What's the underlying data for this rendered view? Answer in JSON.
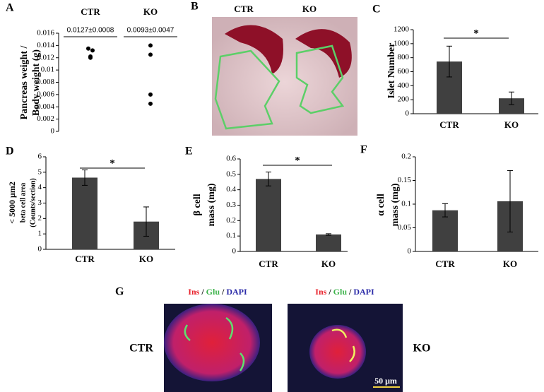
{
  "chart_data": [
    {
      "panel": "A",
      "type": "dot",
      "categories": [
        "CTR",
        "KO"
      ],
      "ylabel": [
        "Pancreas weight /",
        "Body weight (g)"
      ],
      "annotations": [
        "0.0127±0.0008",
        "0.0093±0.0047"
      ],
      "ylim": [
        0,
        0.016
      ],
      "yticks": [
        0,
        0.002,
        0.004,
        0.006,
        0.008,
        0.01,
        0.012,
        0.014,
        0.016
      ],
      "series": [
        {
          "color": "#000000",
          "values": [
            [
              0.0135,
              0.0132,
              0.0122,
              0.012
            ],
            [
              0.014,
              0.0125,
              0.006,
              0.0045
            ]
          ]
        }
      ]
    },
    {
      "panel": "C",
      "type": "bar",
      "categories": [
        "CTR",
        "KO"
      ],
      "ylabel": [
        "Islet Number"
      ],
      "significance": "*",
      "ylim": [
        0,
        1200
      ],
      "yticks": [
        0,
        200,
        400,
        600,
        800,
        1000,
        1200
      ],
      "series": [
        {
          "color": "#404040",
          "values": [
            745,
            220
          ],
          "errors": [
            220,
            90
          ]
        }
      ]
    },
    {
      "panel": "D",
      "type": "bar",
      "categories": [
        "CTR",
        "KO"
      ],
      "ylabel": [
        "< 5000 μm2",
        "beta cell area",
        "(Counts/section)"
      ],
      "significance": "*",
      "ylim": [
        0,
        6
      ],
      "yticks": [
        0,
        1,
        2,
        3,
        4,
        5,
        6
      ],
      "series": [
        {
          "color": "#404040",
          "values": [
            4.65,
            1.8
          ],
          "errors": [
            0.5,
            0.95
          ]
        }
      ]
    },
    {
      "panel": "E",
      "type": "bar",
      "categories": [
        "CTR",
        "KO"
      ],
      "ylabel": [
        "β cell",
        "mass (mg)"
      ],
      "significance": "*",
      "ylim": [
        0,
        0.6
      ],
      "yticks": [
        0,
        0.1,
        0.2,
        0.3,
        0.4,
        0.5,
        0.6
      ],
      "series": [
        {
          "color": "#404040",
          "values": [
            0.47,
            0.11
          ],
          "errors": [
            0.045,
            0.005
          ]
        }
      ]
    },
    {
      "panel": "F",
      "type": "bar",
      "categories": [
        "CTR",
        "KO"
      ],
      "ylabel": [
        "α cell",
        "mass (mg)"
      ],
      "ylim": [
        0,
        0.2
      ],
      "yticks": [
        0,
        0.05,
        0.1,
        0.15,
        0.2
      ],
      "series": [
        {
          "color": "#404040",
          "values": [
            0.087,
            0.106
          ],
          "errors": [
            0.014,
            0.065
          ]
        }
      ]
    }
  ],
  "photo": {
    "panel": "B",
    "labels": [
      "CTR",
      "KO"
    ]
  },
  "micrographs": {
    "panel": "G",
    "stains": [
      {
        "name": "Ins",
        "color": "#e8202a"
      },
      {
        "name": "Glu",
        "color": "#3cb34a"
      },
      {
        "name": "DAPI",
        "color": "#2a2aa8"
      }
    ],
    "separator": "/",
    "labels": [
      "CTR",
      "KO"
    ],
    "scale_bar": "50 μm"
  }
}
